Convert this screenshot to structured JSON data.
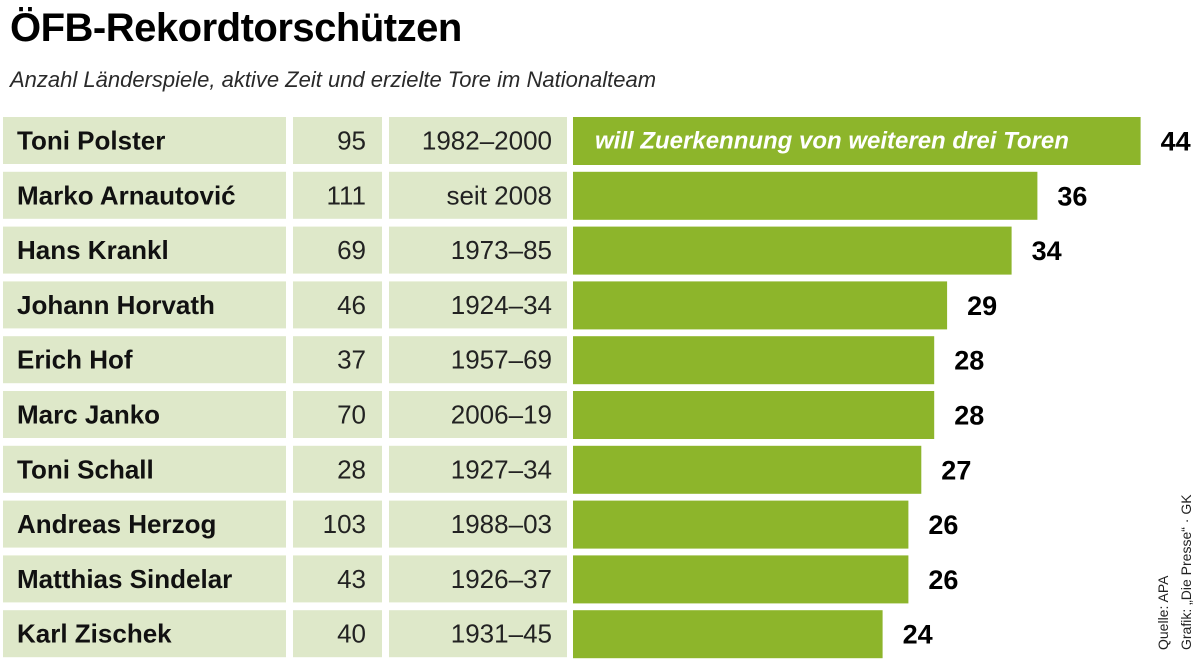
{
  "header": {
    "title": "ÖFB-Rekordtorschützen",
    "subtitle": "Anzahl Länderspiele, aktive Zeit und erzielte Tore im Nationalteam"
  },
  "colors": {
    "bar": "#8db52b",
    "cell": "#dee8c9"
  },
  "footer": {
    "source": "Quelle: APA",
    "credit": "Grafik: „Die Presse“ · GK"
  },
  "chart_data": {
    "type": "bar",
    "orientation": "horizontal",
    "title": "ÖFB-Rekordtorschützen",
    "subtitle": "Anzahl Länderspiele, aktive Zeit und erzielte Tore im Nationalteam",
    "categories": [
      "Toni Polster",
      "Marko Arnautović",
      "Hans Krankl",
      "Johann Horvath",
      "Erich Hof",
      "Marc Janko",
      "Toni Schall",
      "Andreas Herzog",
      "Matthias Sindelar",
      "Karl Zischek"
    ],
    "caps": [
      "95",
      "111",
      "69",
      "46",
      "37",
      "70",
      "28",
      "103",
      "43",
      "40"
    ],
    "periods": [
      "1982–2000",
      "seit 2008",
      "1973–85",
      "1924–34",
      "1957–69",
      "2006–19",
      "1927–34",
      "1988–03",
      "1926–37",
      "1931–45"
    ],
    "values": [
      44,
      36,
      34,
      29,
      28,
      28,
      27,
      26,
      26,
      24
    ],
    "annotations": [
      {
        "row": 0,
        "text": "will Zuerkennung von weiteren drei Toren"
      }
    ]
  }
}
